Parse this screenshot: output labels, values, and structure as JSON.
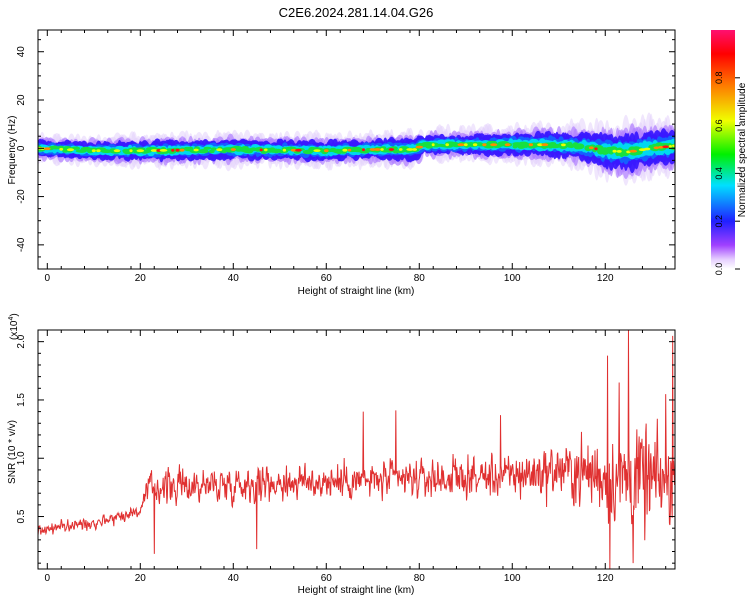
{
  "title": "C2E6.2024.281.14.04.G26",
  "colorbar": {
    "label": "Normalized spectral amplitude",
    "ticks": [
      "0.0",
      "0.2",
      "0.4",
      "0.6",
      "0.8"
    ]
  },
  "chart_data": [
    {
      "type": "heatmap",
      "xlabel": "Height of straight line (km)",
      "ylabel": "Frequency (Hz)",
      "xlim": [
        -2,
        135
      ],
      "ylim": [
        -50,
        49
      ],
      "xticks": [
        0,
        20,
        40,
        60,
        80,
        100,
        120
      ],
      "yticks": [
        40,
        20,
        0,
        -20,
        -40
      ],
      "xtick_labels": [
        "0",
        "20",
        "40",
        "60",
        "80",
        "100",
        "120"
      ],
      "ytick_labels": [
        "40",
        "20",
        "0",
        "-20",
        "-40"
      ],
      "colorscale": "rainbow",
      "zlim": [
        0,
        1
      ],
      "ridge": {
        "x": [
          -2,
          10,
          20,
          40,
          60,
          70,
          79,
          81,
          90,
          100,
          110,
          115,
          120,
          125,
          130,
          135
        ],
        "center_freq": [
          0,
          -1,
          -1,
          -0.5,
          -1,
          -0.5,
          -0.5,
          1.5,
          1.5,
          1.5,
          1.5,
          1,
          -1,
          -1.5,
          0,
          1
        ],
        "half_width": [
          3,
          3,
          3.5,
          3.5,
          3.5,
          3.5,
          4,
          3.5,
          3.5,
          4,
          4.5,
          5,
          6,
          7,
          6,
          6
        ]
      }
    },
    {
      "type": "line",
      "xlabel": "Height of straight line (km)",
      "ylabel": "SNR (10 * v/v)",
      "multiplier_label": "(x10",
      "multiplier_exp": "4",
      "xlim": [
        -2,
        135
      ],
      "ylim": [
        0.05,
        2.1
      ],
      "xticks": [
        0,
        20,
        40,
        60,
        80,
        100,
        120
      ],
      "yticks": [
        0.5,
        1.0,
        1.5,
        2.0
      ],
      "xtick_labels": [
        "0",
        "20",
        "40",
        "60",
        "80",
        "100",
        "120"
      ],
      "ytick_labels": [
        "0.5",
        "1.0",
        "1.5",
        "2.0"
      ],
      "color": "#e03030",
      "trend": {
        "x": [
          -2,
          10,
          20,
          22,
          40,
          60,
          80,
          100,
          110,
          120,
          125,
          130,
          135
        ],
        "mean": [
          0.38,
          0.45,
          0.55,
          0.75,
          0.78,
          0.8,
          0.82,
          0.85,
          0.9,
          0.85,
          0.85,
          0.8,
          0.8
        ],
        "amplitude": [
          0.1,
          0.1,
          0.12,
          0.28,
          0.3,
          0.3,
          0.3,
          0.35,
          0.45,
          0.7,
          0.9,
          0.8,
          0.7
        ]
      },
      "peaks": [
        {
          "x": 68,
          "y": 1.4
        },
        {
          "x": 75,
          "y": 1.41
        },
        {
          "x": 97.5,
          "y": 1.37
        },
        {
          "x": 120.5,
          "y": 1.88
        },
        {
          "x": 123,
          "y": 1.65
        },
        {
          "x": 125,
          "y": 2.1
        },
        {
          "x": 133,
          "y": 1.55
        },
        {
          "x": 134.5,
          "y": 2.05
        },
        {
          "x": 45,
          "y": 0.22
        },
        {
          "x": 23,
          "y": 0.18
        },
        {
          "x": 121,
          "y": 0.05
        },
        {
          "x": 126,
          "y": 0.1
        }
      ],
      "n_points": 1370
    }
  ]
}
